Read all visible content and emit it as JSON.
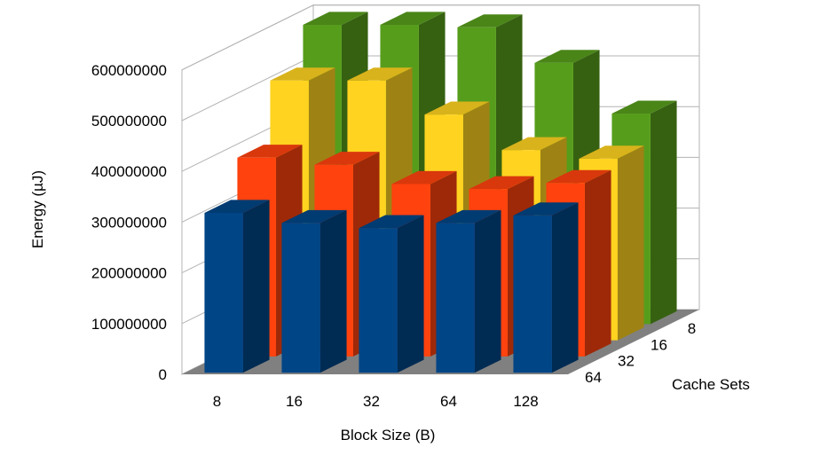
{
  "chart_data": {
    "type": "bar",
    "title": "",
    "xlabel": "Block Size (B)",
    "ylabel": "Energy (µJ)",
    "zlabel": "Cache Sets",
    "categories": [
      "8",
      "16",
      "32",
      "64",
      "128"
    ],
    "y_ticks": [
      "0",
      "100000000",
      "200000000",
      "300000000",
      "400000000",
      "500000000",
      "600000000"
    ],
    "ylim": [
      0,
      600000000
    ],
    "grid": true,
    "legend": "none",
    "series": [
      {
        "label": "64",
        "color": "#004586",
        "values": [
          315000000,
          295000000,
          285000000,
          295000000,
          310000000
        ]
      },
      {
        "label": "32",
        "color": "#ff420e",
        "values": [
          392000000,
          378000000,
          340000000,
          330000000,
          342000000
        ]
      },
      {
        "label": "16",
        "color": "#ffd320",
        "values": [
          512000000,
          512000000,
          445000000,
          375000000,
          358000000
        ]
      },
      {
        "label": "8",
        "color": "#579d1c",
        "values": [
          590000000,
          590000000,
          585000000,
          515000000,
          415000000
        ]
      }
    ]
  }
}
